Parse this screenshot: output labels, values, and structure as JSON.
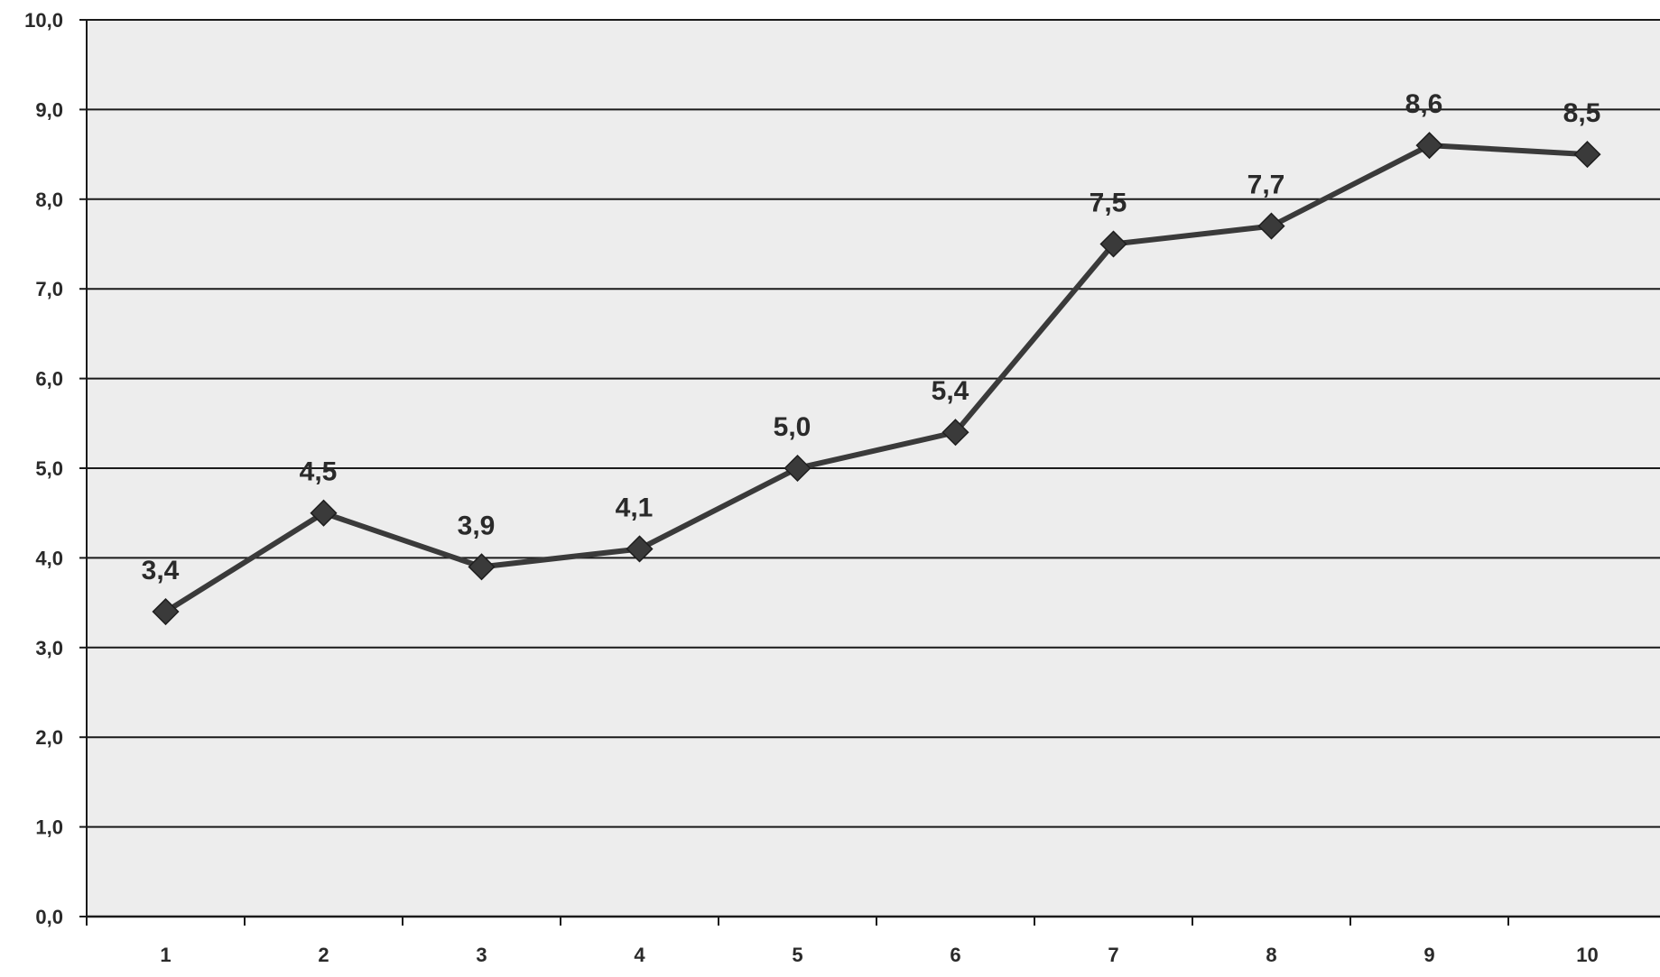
{
  "colors": {
    "plot_background": "#ededed",
    "gridline": "#1a1a1a",
    "series_line": "#3a3a3a",
    "marker": "#3a3a3a",
    "text": "#2a2a2a"
  },
  "chart_data": {
    "type": "line",
    "title": "",
    "xlabel": "",
    "ylabel": "",
    "categories": [
      "1",
      "2",
      "3",
      "4",
      "5",
      "6",
      "7",
      "8",
      "9",
      "10"
    ],
    "series": [
      {
        "values": [
          3.4,
          4.5,
          3.9,
          4.1,
          5.0,
          5.4,
          7.5,
          7.7,
          8.6,
          8.5
        ],
        "marker": "diamond"
      }
    ],
    "data_labels": [
      "3,4",
      "4,5",
      "3,9",
      "4,1",
      "5,0",
      "5,4",
      "7,5",
      "7,7",
      "8,6",
      "8,5"
    ],
    "y_tick_labels": [
      "0,0",
      "1,0",
      "2,0",
      "3,0",
      "4,0",
      "5,0",
      "6,0",
      "7,0",
      "8,0",
      "9,0",
      "10,0"
    ],
    "ylim": [
      0,
      10
    ],
    "y_tick_step": 1,
    "grid": true,
    "legend": "none"
  }
}
